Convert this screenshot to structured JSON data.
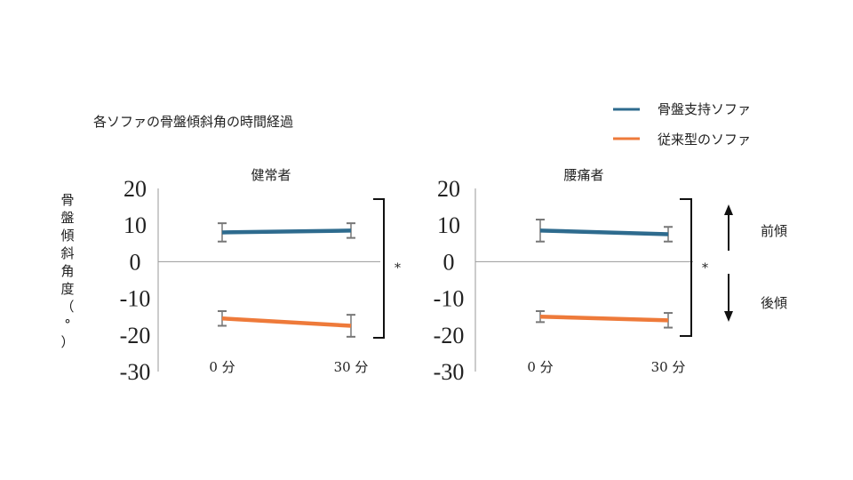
{
  "title": "各ソファの骨盤傾斜角の時間経過",
  "ylabel_chars": [
    "骨",
    "盤",
    "傾",
    "斜",
    "角",
    "度",
    "（",
    "°",
    "）"
  ],
  "legend": [
    {
      "label": "骨盤支持ソファ",
      "color": "#2e6b8e"
    },
    {
      "label": "従来型のソファ",
      "color": "#ee7a3a"
    }
  ],
  "y_ticks": [
    "20",
    "10",
    "0",
    "-10",
    "-20",
    "-30"
  ],
  "significance_mark": "*",
  "direction_labels": {
    "forward": "前傾",
    "backward": "後傾"
  },
  "chart_data": [
    {
      "type": "line",
      "title": "健常者",
      "categories": [
        "0 分",
        "30 分"
      ],
      "ylim": [
        -30,
        20
      ],
      "series": [
        {
          "name": "骨盤支持ソファ",
          "color": "#2e6b8e",
          "values": [
            8,
            8.5
          ],
          "error": [
            2.5,
            2
          ]
        },
        {
          "name": "従来型のソファ",
          "color": "#ee7a3a",
          "values": [
            -15.5,
            -17.5
          ],
          "error": [
            2,
            3
          ]
        }
      ]
    },
    {
      "type": "line",
      "title": "腰痛者",
      "categories": [
        "0 分",
        "30 分"
      ],
      "ylim": [
        -30,
        20
      ],
      "series": [
        {
          "name": "骨盤支持ソファ",
          "color": "#2e6b8e",
          "values": [
            8.5,
            7.5
          ],
          "error": [
            3,
            2
          ]
        },
        {
          "name": "従来型のソファ",
          "color": "#ee7a3a",
          "values": [
            -15,
            -16
          ],
          "error": [
            1.5,
            2
          ]
        }
      ]
    }
  ]
}
